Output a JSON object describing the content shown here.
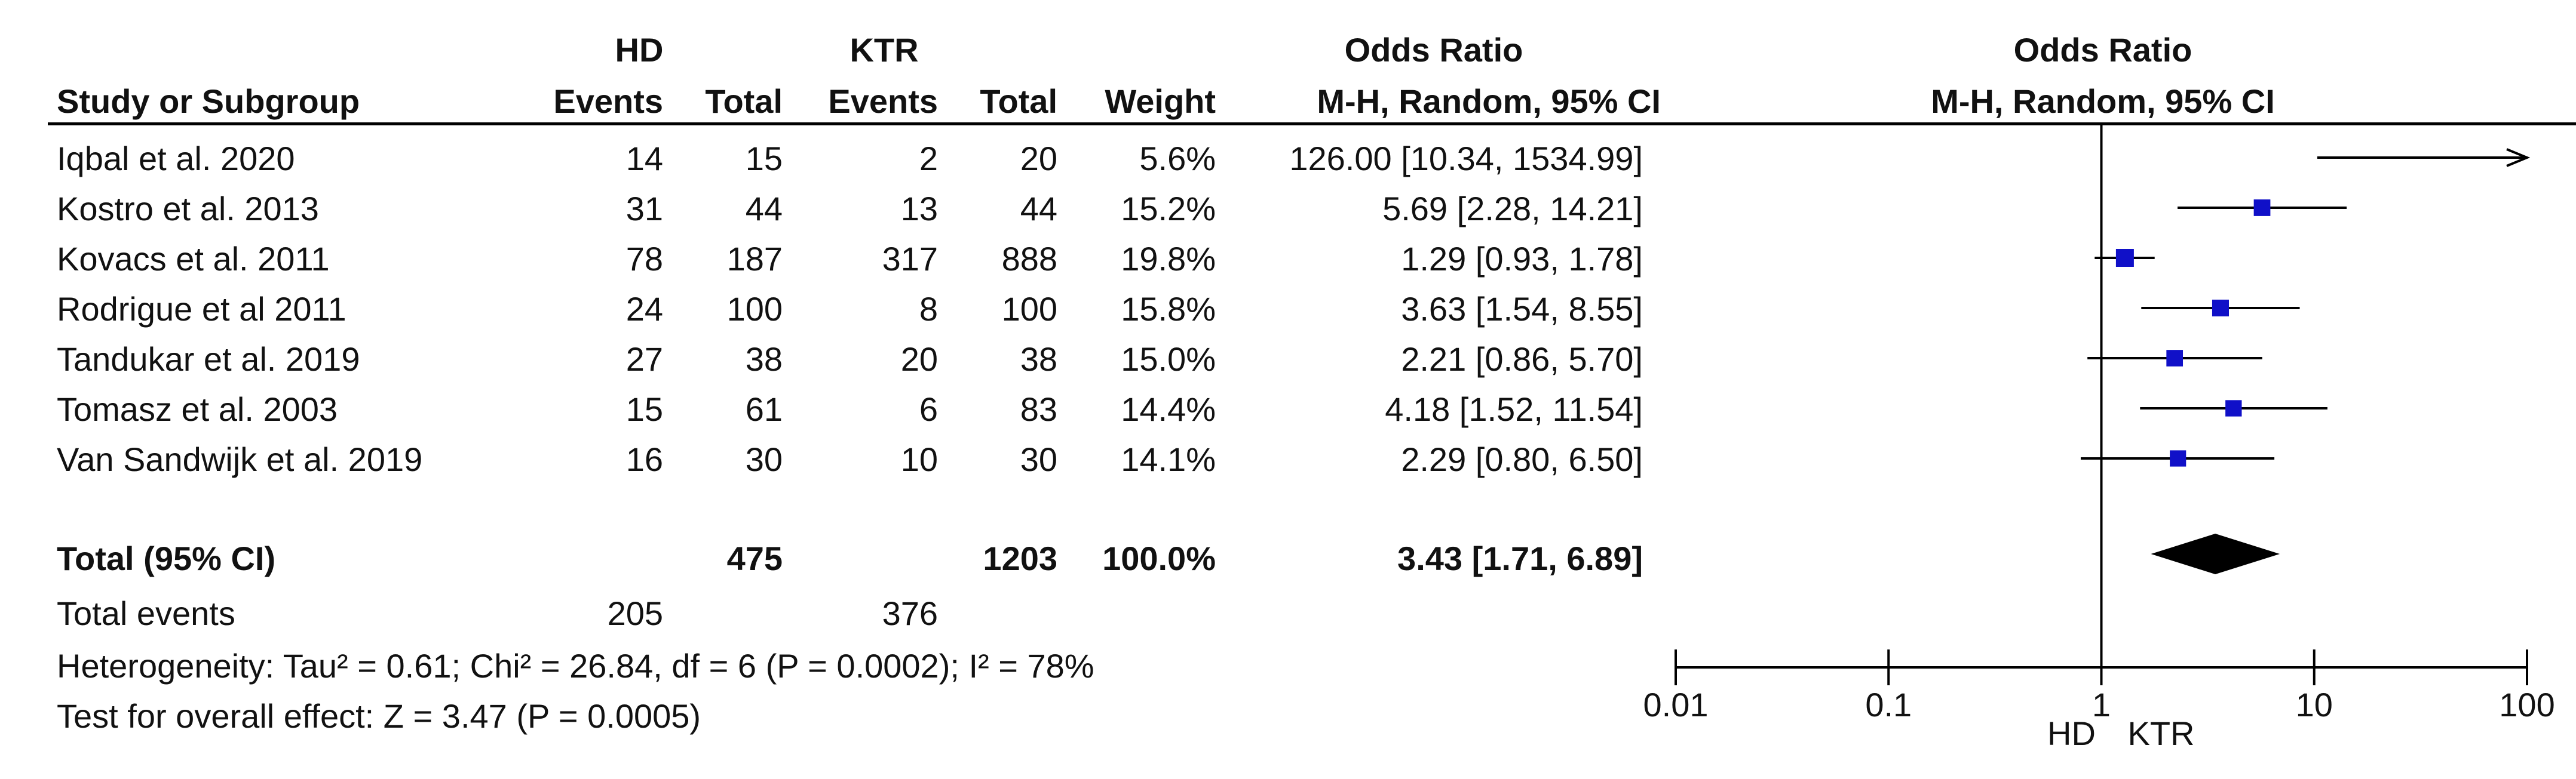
{
  "headers": {
    "group1": "HD",
    "group2": "KTR",
    "odds_ratio_left": "Odds Ratio",
    "odds_ratio_right": "Odds Ratio",
    "study": "Study or Subgroup",
    "events1": "Events",
    "total1": "Total",
    "events2": "Events",
    "total2": "Total",
    "weight": "Weight",
    "method_left": "M-H, Random, 95% CI",
    "method_right": "M-H, Random, 95% CI"
  },
  "studies": [
    {
      "name": "Iqbal et al. 2020",
      "e1": "14",
      "t1": "15",
      "e2": "2",
      "t2": "20",
      "weight": "5.6%",
      "ci": "126.00 [10.34, 1534.99]"
    },
    {
      "name": "Kostro et al. 2013",
      "e1": "31",
      "t1": "44",
      "e2": "13",
      "t2": "44",
      "weight": "15.2%",
      "ci": "5.69 [2.28, 14.21]"
    },
    {
      "name": "Kovacs et al. 2011",
      "e1": "78",
      "t1": "187",
      "e2": "317",
      "t2": "888",
      "weight": "19.8%",
      "ci": "1.29 [0.93, 1.78]"
    },
    {
      "name": "Rodrigue et al 2011",
      "e1": "24",
      "t1": "100",
      "e2": "8",
      "t2": "100",
      "weight": "15.8%",
      "ci": "3.63 [1.54, 8.55]"
    },
    {
      "name": "Tandukar et al. 2019",
      "e1": "27",
      "t1": "38",
      "e2": "20",
      "t2": "38",
      "weight": "15.0%",
      "ci": "2.21 [0.86, 5.70]"
    },
    {
      "name": "Tomasz et al. 2003",
      "e1": "15",
      "t1": "61",
      "e2": "6",
      "t2": "83",
      "weight": "14.4%",
      "ci": "4.18 [1.52, 11.54]"
    },
    {
      "name": "Van Sandwijk et al. 2019",
      "e1": "16",
      "t1": "30",
      "e2": "10",
      "t2": "30",
      "weight": "14.1%",
      "ci": "2.29 [0.80, 6.50]"
    }
  ],
  "total_row": {
    "name": "Total (95% CI)",
    "t1": "475",
    "t2": "1203",
    "weight": "100.0%",
    "ci": "3.43 [1.71, 6.89]"
  },
  "events_row": {
    "name": "Total events",
    "e1": "205",
    "e2": "376"
  },
  "heterogeneity": "Heterogeneity: Tau² = 0.61; Chi² = 26.84, df = 6 (P = 0.0002); I² = 78%",
  "overall_effect": "Test for overall effect: Z = 3.47 (P = 0.0005)",
  "colors": {
    "marker": "#1010c8",
    "line": "#000000",
    "diamond": "#000000"
  },
  "chart_data": {
    "type": "forest",
    "scale": "log",
    "xlim": [
      0.01,
      100
    ],
    "ticks": [
      "0.01",
      "0.1",
      "1",
      "10",
      "100"
    ],
    "tick_values": [
      0.01,
      0.1,
      1,
      10,
      100
    ],
    "favours_left": "HD",
    "favours_right": "KTR",
    "studies": [
      {
        "label": "Iqbal et al. 2020",
        "or": 126.0,
        "lo": 10.34,
        "hi": 1534.99,
        "weight": 5.6
      },
      {
        "label": "Kostro et al. 2013",
        "or": 5.69,
        "lo": 2.28,
        "hi": 14.21,
        "weight": 15.2
      },
      {
        "label": "Kovacs et al. 2011",
        "or": 1.29,
        "lo": 0.93,
        "hi": 1.78,
        "weight": 19.8
      },
      {
        "label": "Rodrigue et al 2011",
        "or": 3.63,
        "lo": 1.54,
        "hi": 8.55,
        "weight": 15.8
      },
      {
        "label": "Tandukar et al. 2019",
        "or": 2.21,
        "lo": 0.86,
        "hi": 5.7,
        "weight": 15.0
      },
      {
        "label": "Tomasz et al. 2003",
        "or": 4.18,
        "lo": 1.52,
        "hi": 11.54,
        "weight": 14.4
      },
      {
        "label": "Van Sandwijk et al. 2019",
        "or": 2.29,
        "lo": 0.8,
        "hi": 6.5,
        "weight": 14.1
      }
    ],
    "pooled": {
      "label": "Total (95% CI)",
      "or": 3.43,
      "lo": 1.71,
      "hi": 6.89
    }
  }
}
